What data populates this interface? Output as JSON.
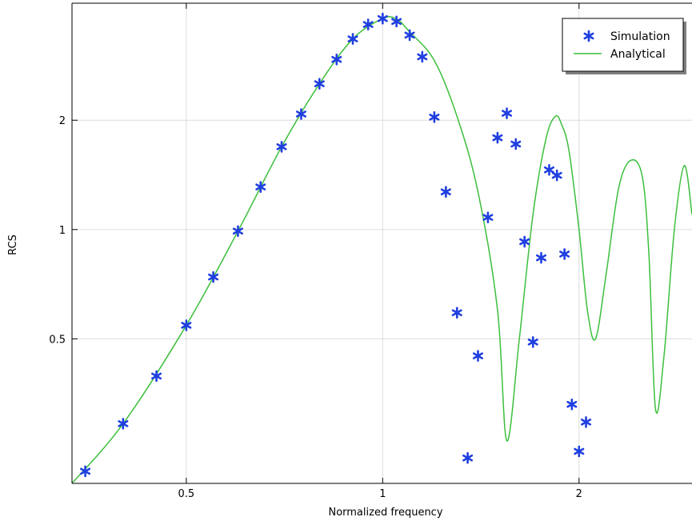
{
  "chart_data": {
    "type": "line",
    "xlabel": "Normalized frequency",
    "ylabel": "RCS",
    "xscale": "log",
    "yscale": "log",
    "xlim": [
      0.334,
      2.98
    ],
    "ylim": [
      0.2,
      4.2
    ],
    "x_ticks": [
      {
        "value": 0.5,
        "label": "0.5"
      },
      {
        "value": 1,
        "label": "1"
      },
      {
        "value": 2,
        "label": "2"
      }
    ],
    "y_ticks": [
      {
        "value": 0.5,
        "label": "0.5"
      },
      {
        "value": 1,
        "label": "1"
      },
      {
        "value": 2,
        "label": "2"
      }
    ],
    "grid": true,
    "legend_position": "top-right",
    "series": [
      {
        "name": "Simulation",
        "style": "markers",
        "marker": "asterisk",
        "color": "#1f3fe0",
        "x": [
          0.35,
          0.4,
          0.45,
          0.5,
          0.55,
          0.6,
          0.65,
          0.7,
          0.75,
          0.8,
          0.85,
          0.9,
          0.95,
          1.0,
          1.05,
          1.1,
          1.15,
          1.2,
          1.25,
          1.3,
          1.35,
          1.4,
          1.45,
          1.5,
          1.55,
          1.6,
          1.65,
          1.7,
          1.75,
          1.8,
          1.85,
          1.9,
          1.95,
          2.0,
          2.05
        ],
        "y": [
          0.216,
          0.292,
          0.395,
          0.545,
          0.74,
          0.99,
          1.31,
          1.69,
          2.08,
          2.52,
          2.94,
          3.35,
          3.67,
          3.81,
          3.74,
          3.43,
          2.99,
          2.04,
          1.27,
          0.59,
          0.235,
          0.449,
          1.08,
          1.79,
          2.09,
          1.72,
          0.926,
          0.49,
          0.836,
          1.46,
          1.41,
          0.856,
          0.33,
          0.245,
          0.295
        ]
      },
      {
        "name": "Analytical",
        "style": "line",
        "color": "#3cbf3c",
        "x": [
          0.334,
          0.4,
          0.5,
          0.6,
          0.7,
          0.8,
          0.9,
          1.0,
          1.05,
          1.1,
          1.2,
          1.3,
          1.4,
          1.5,
          1.55,
          1.62,
          1.7,
          1.78,
          1.84,
          1.88,
          1.93,
          2.0,
          2.06,
          2.12,
          2.2,
          2.3,
          2.4,
          2.5,
          2.56,
          2.62,
          2.7,
          2.8,
          2.9,
          2.98
        ],
        "y": [
          0.2,
          0.292,
          0.545,
          0.99,
          1.69,
          2.52,
          3.35,
          3.81,
          3.8,
          3.5,
          2.92,
          2.05,
          1.27,
          0.6,
          0.262,
          0.5,
          1.1,
          1.78,
          2.05,
          1.95,
          1.65,
          1.0,
          0.6,
          0.5,
          0.75,
          1.3,
          1.55,
          1.4,
          0.85,
          0.32,
          0.45,
          1.0,
          1.5,
          1.1
        ]
      }
    ]
  }
}
